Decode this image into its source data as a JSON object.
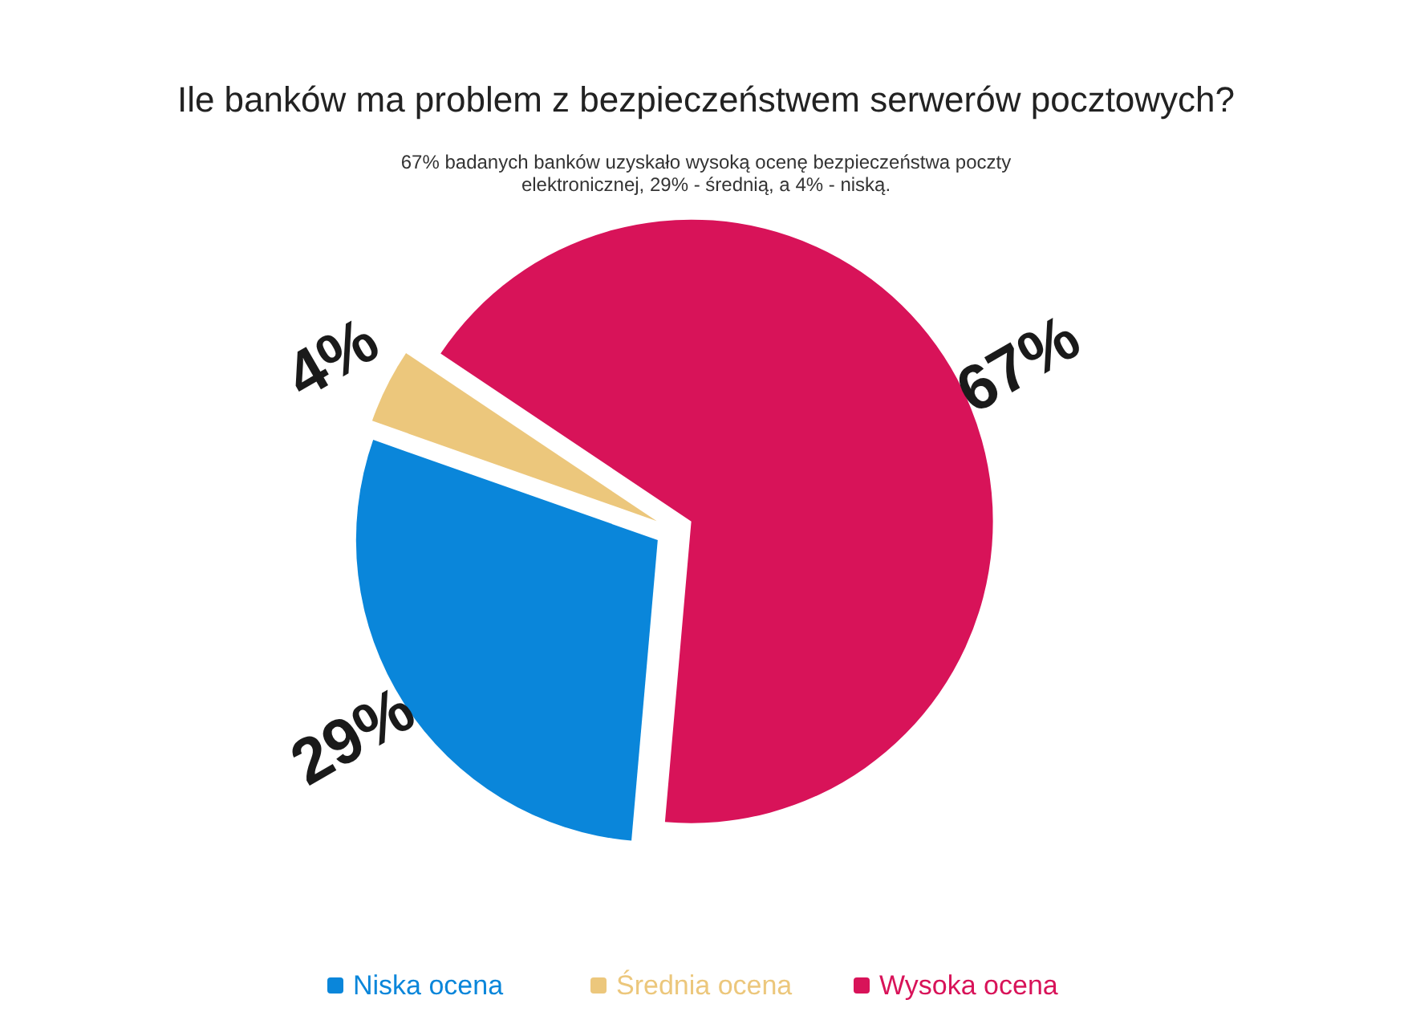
{
  "chart_data": {
    "type": "pie",
    "title": "Ile banków ma problem z bezpieczeństwem serwerów pocztowych?",
    "subtitle": "67% badanych banków uzyskało wysoką ocenę bezpieczeństwa poczty elektronicznej, 29% - średnią, a 4% - niską.",
    "categories": [
      "Niska ocena",
      "Średnia ocena",
      "Wysoka ocena"
    ],
    "values": [
      29,
      4,
      67
    ],
    "colors": [
      "#0a86da",
      "#ecc77c",
      "#d81359"
    ],
    "value_labels": [
      "29%",
      "4%",
      "67%"
    ],
    "legend": "bottom"
  }
}
